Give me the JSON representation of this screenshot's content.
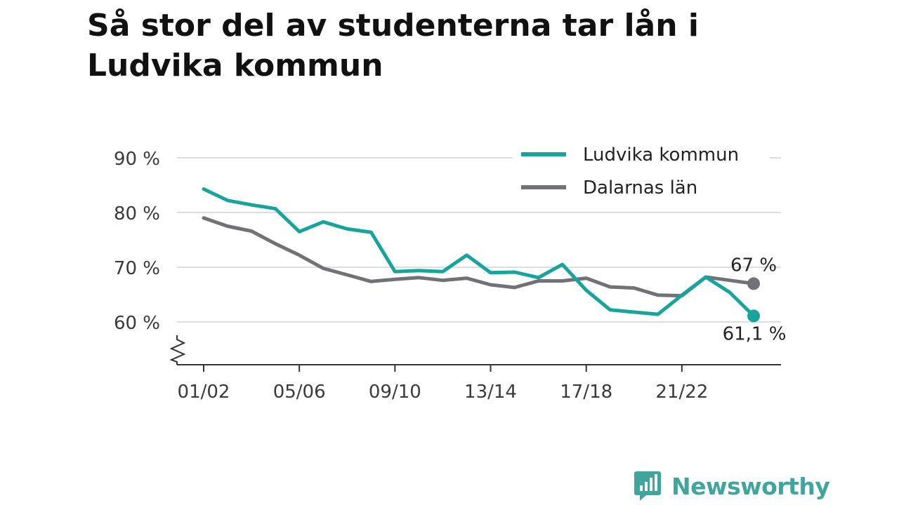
{
  "title": "Så stor del av studenterna tar lån i Ludvika kommun",
  "brand": {
    "name": "Newsworthy",
    "color": "#3fa59d",
    "icon": "bar-chart-speech-bubble-icon"
  },
  "chart_data": {
    "type": "line",
    "title": "Så stor del av studenterna tar lån i Ludvika kommun",
    "xlabel": "",
    "ylabel": "",
    "x": [
      "01/02",
      "02/03",
      "03/04",
      "04/05",
      "05/06",
      "06/07",
      "07/08",
      "08/09",
      "09/10",
      "10/11",
      "11/12",
      "12/13",
      "13/14",
      "14/15",
      "15/16",
      "16/17",
      "17/18",
      "18/19",
      "19/20",
      "20/21",
      "21/22",
      "22/23",
      "23/24",
      "24/25"
    ],
    "x_tick_labels": [
      "01/02",
      "05/06",
      "09/10",
      "13/14",
      "17/18",
      "21/22"
    ],
    "y_ticks": [
      60,
      70,
      80,
      90
    ],
    "y_tick_labels": [
      "60 %",
      "70 %",
      "80 %",
      "90 %"
    ],
    "ylim": [
      52,
      92
    ],
    "y_axis_break": true,
    "grid": true,
    "legend_position": "top-right",
    "series": [
      {
        "name": "Ludvika kommun",
        "color": "#17a49a",
        "values": [
          84.3,
          82.2,
          81.4,
          80.7,
          76.5,
          78.3,
          77.0,
          76.4,
          69.2,
          69.4,
          69.2,
          72.2,
          69.0,
          69.1,
          68.1,
          70.5,
          65.8,
          62.2,
          61.8,
          61.4,
          64.9,
          68.2,
          65.4,
          61.1
        ],
        "end_label": "61,1 %"
      },
      {
        "name": "Dalarnas län",
        "color": "#727177",
        "values": [
          79.0,
          77.5,
          76.6,
          74.3,
          72.2,
          69.8,
          68.6,
          67.4,
          67.8,
          68.1,
          67.6,
          68.0,
          66.8,
          66.3,
          67.5,
          67.5,
          68.0,
          66.4,
          66.2,
          64.9,
          64.8,
          68.2,
          67.6,
          67.0
        ],
        "end_label": "67 %"
      }
    ]
  }
}
